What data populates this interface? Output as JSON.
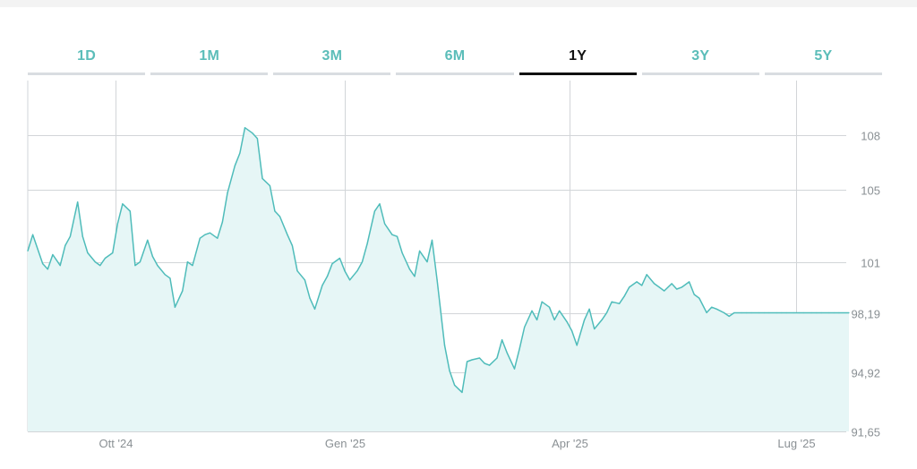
{
  "tabs": [
    {
      "label": "1D",
      "active": false
    },
    {
      "label": "1M",
      "active": false
    },
    {
      "label": "3M",
      "active": false
    },
    {
      "label": "6M",
      "active": false
    },
    {
      "label": "1Y",
      "active": true
    },
    {
      "label": "3Y",
      "active": false
    },
    {
      "label": "5Y",
      "active": false
    }
  ],
  "colors": {
    "accent": "#5bbdb9",
    "line": "#4fbcba",
    "area": "#e6f6f6",
    "active_tab": "#111111",
    "tab_underline": "#d9dde1",
    "grid": "#d2d5d8",
    "axis_text": "#8a9094"
  },
  "chart_data": {
    "type": "area",
    "title": "",
    "xlabel": "",
    "ylabel": "",
    "grid": true,
    "ylim": [
      91.65,
      111.0
    ],
    "x_range": [
      "2024-08-27",
      "2025-07-22"
    ],
    "y_ticks": [
      {
        "value": 108,
        "label": "108"
      },
      {
        "value": 105,
        "label": "105"
      },
      {
        "value": 101,
        "label": "101"
      },
      {
        "value": 98.19,
        "label": "98,19"
      },
      {
        "value": 94.92,
        "label": "94,92"
      },
      {
        "value": 91.65,
        "label": "91,65"
      }
    ],
    "x_ticks": [
      {
        "date": "2024-10-01",
        "label": "Ott '24"
      },
      {
        "date": "2025-01-01",
        "label": "Gen '25"
      },
      {
        "date": "2025-04-01",
        "label": "Apr '25"
      },
      {
        "date": "2025-07-01",
        "label": "Lug '25"
      }
    ],
    "series": [
      {
        "x": [
          "2024-08-27",
          "2024-08-29",
          "2024-09-02",
          "2024-09-04",
          "2024-09-06",
          "2024-09-09",
          "2024-09-11",
          "2024-09-13",
          "2024-09-16",
          "2024-09-18",
          "2024-09-20",
          "2024-09-23",
          "2024-09-25",
          "2024-09-27",
          "2024-09-30",
          "2024-10-02",
          "2024-10-04",
          "2024-10-07",
          "2024-10-09",
          "2024-10-11",
          "2024-10-14",
          "2024-10-16",
          "2024-10-18",
          "2024-10-21",
          "2024-10-23",
          "2024-10-25",
          "2024-10-28",
          "2024-10-30",
          "2024-11-01",
          "2024-11-04",
          "2024-11-06",
          "2024-11-08",
          "2024-11-11",
          "2024-11-13",
          "2024-11-15",
          "2024-11-18",
          "2024-11-20",
          "2024-11-22",
          "2024-11-25",
          "2024-11-27",
          "2024-11-29",
          "2024-12-02",
          "2024-12-04",
          "2024-12-06",
          "2024-12-09",
          "2024-12-11",
          "2024-12-13",
          "2024-12-16",
          "2024-12-18",
          "2024-12-20",
          "2024-12-23",
          "2024-12-25",
          "2024-12-27",
          "2024-12-30",
          "2025-01-01",
          "2025-01-03",
          "2025-01-06",
          "2025-01-08",
          "2025-01-10",
          "2025-01-13",
          "2025-01-15",
          "2025-01-17",
          "2025-01-20",
          "2025-01-22",
          "2025-01-24",
          "2025-01-27",
          "2025-01-29",
          "2025-01-31",
          "2025-02-03",
          "2025-02-05",
          "2025-02-07",
          "2025-02-10",
          "2025-02-12",
          "2025-02-14",
          "2025-02-17",
          "2025-02-19",
          "2025-02-21",
          "2025-02-24",
          "2025-02-26",
          "2025-02-28",
          "2025-03-03",
          "2025-03-05",
          "2025-03-07",
          "2025-03-10",
          "2025-03-12",
          "2025-03-14",
          "2025-03-17",
          "2025-03-19",
          "2025-03-21",
          "2025-03-24",
          "2025-03-26",
          "2025-03-28",
          "2025-03-31",
          "2025-04-02",
          "2025-04-04",
          "2025-04-07",
          "2025-04-09",
          "2025-04-11",
          "2025-04-14",
          "2025-04-16",
          "2025-04-18",
          "2025-04-21",
          "2025-04-23",
          "2025-04-25",
          "2025-04-28",
          "2025-04-30",
          "2025-05-02",
          "2025-05-05",
          "2025-05-07",
          "2025-05-09",
          "2025-05-12",
          "2025-05-14",
          "2025-05-16",
          "2025-05-19",
          "2025-05-21",
          "2025-05-23",
          "2025-05-26",
          "2025-05-28",
          "2025-05-30",
          "2025-06-02",
          "2025-06-04",
          "2025-06-06",
          "2025-06-09",
          "2025-06-11",
          "2025-06-13",
          "2025-06-16",
          "2025-06-18",
          "2025-06-20",
          "2025-06-23",
          "2025-06-25",
          "2025-06-27",
          "2025-06-30",
          "2025-07-02",
          "2025-07-04",
          "2025-07-07",
          "2025-07-09",
          "2025-07-11",
          "2025-07-14",
          "2025-07-16",
          "2025-07-18",
          "2025-07-22"
        ],
        "values": [
          101.6,
          102.5,
          100.9,
          100.6,
          101.4,
          100.8,
          101.9,
          102.4,
          104.3,
          102.4,
          101.5,
          101.0,
          100.8,
          101.2,
          101.5,
          103.1,
          104.2,
          103.8,
          100.8,
          101.0,
          102.2,
          101.3,
          100.8,
          100.3,
          100.1,
          98.5,
          99.4,
          101.0,
          100.8,
          102.3,
          102.5,
          102.6,
          102.3,
          103.2,
          104.8,
          106.3,
          107.0,
          108.4,
          108.1,
          107.8,
          105.6,
          105.2,
          103.8,
          103.5,
          102.5,
          101.9,
          100.5,
          100.0,
          99.0,
          98.4,
          99.7,
          100.2,
          100.9,
          101.2,
          100.5,
          100.0,
          100.5,
          101.0,
          102.0,
          103.8,
          104.2,
          103.1,
          102.5,
          102.4,
          101.5,
          100.6,
          100.2,
          101.6,
          101.0,
          102.2,
          100.0,
          96.4,
          95.0,
          94.2,
          93.8,
          95.5,
          95.6,
          95.7,
          95.4,
          95.3,
          95.7,
          96.7,
          96.0,
          95.1,
          96.2,
          97.4,
          98.3,
          97.8,
          98.8,
          98.5,
          97.8,
          98.3,
          97.7,
          97.2,
          96.4,
          97.8,
          98.4,
          97.3,
          97.8,
          98.2,
          98.8,
          98.7,
          99.1,
          99.6,
          99.9,
          99.7,
          100.3,
          99.8,
          99.6,
          99.4,
          99.8,
          99.5,
          99.6,
          99.9,
          99.2,
          99.0,
          98.2,
          98.5,
          98.4,
          98.19,
          98.0,
          98.19,
          98.19,
          98.19,
          98.19,
          98.19,
          98.19,
          98.19,
          98.19,
          98.19,
          98.19,
          98.19,
          98.19,
          98.19,
          98.19,
          98.19,
          98.19,
          98.19,
          98.19,
          98.19,
          98.19
        ]
      }
    ]
  }
}
